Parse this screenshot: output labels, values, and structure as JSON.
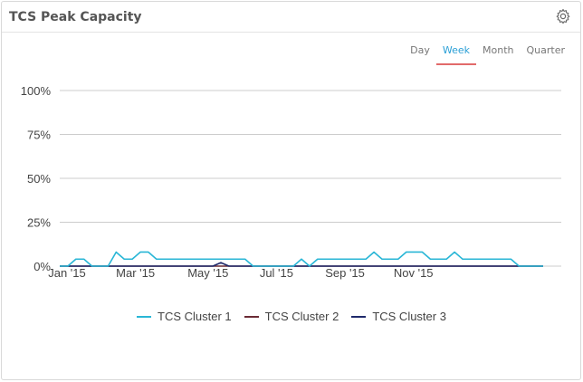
{
  "widget": {
    "title": "TCS Peak Capacity",
    "settings_icon": "gear-icon"
  },
  "range_tabs": [
    {
      "label": "Day",
      "active": false
    },
    {
      "label": "Week",
      "active": true
    },
    {
      "label": "Month",
      "active": false
    },
    {
      "label": "Quarter",
      "active": false
    }
  ],
  "colors": {
    "cluster1": "#29b6d6",
    "cluster2": "#6b2b35",
    "cluster3": "#1f2a6b",
    "grid": "#cccccc",
    "active_tab_underline": "#e26a6a"
  },
  "chart_data": {
    "type": "line",
    "title": "",
    "xlabel": "",
    "ylabel": "",
    "ylim": [
      0,
      100
    ],
    "y_ticks": [
      "0%",
      "25%",
      "50%",
      "75%",
      "100%"
    ],
    "x_ticks": [
      "Jan '15",
      "Mar '15",
      "May '15",
      "Jul '15",
      "Sep '15",
      "Nov '15"
    ],
    "grid": true,
    "legend_position": "bottom",
    "x_weeks": [
      0,
      1,
      2,
      3,
      4,
      5,
      6,
      7,
      8,
      9,
      10,
      11,
      12,
      13,
      14,
      15,
      16,
      17,
      18,
      19,
      20,
      21,
      22,
      23,
      24,
      25,
      26,
      27,
      28,
      29,
      30,
      31,
      32,
      33,
      34,
      35,
      36,
      37,
      38,
      39,
      40,
      41,
      42,
      43,
      44,
      45,
      46,
      47,
      48,
      49,
      50,
      51,
      52,
      53,
      54,
      55,
      56,
      57,
      58,
      59,
      60
    ],
    "series": [
      {
        "name": "TCS Cluster 1",
        "values": [
          0,
          0,
          4,
          4,
          0,
          0,
          0,
          8,
          4,
          4,
          8,
          8,
          4,
          4,
          4,
          4,
          4,
          4,
          4,
          4,
          4,
          4,
          4,
          4,
          0,
          0,
          0,
          0,
          0,
          0,
          4,
          0,
          4,
          4,
          4,
          4,
          4,
          4,
          4,
          8,
          4,
          4,
          4,
          8,
          8,
          8,
          4,
          4,
          4,
          8,
          4,
          4,
          4,
          4,
          4,
          4,
          4,
          0,
          0,
          0,
          0
        ]
      },
      {
        "name": "TCS Cluster 2",
        "values": [
          0,
          0,
          0,
          0,
          0,
          0,
          0,
          0,
          0,
          0,
          0,
          0,
          0,
          0,
          0,
          0,
          0,
          0,
          0,
          0,
          0,
          0,
          0,
          0,
          0,
          0,
          0,
          0,
          0,
          0,
          0,
          0,
          0,
          0,
          0,
          0,
          0,
          0,
          0,
          0,
          0,
          0,
          0,
          0,
          0,
          0,
          0,
          0,
          0,
          0,
          0,
          0,
          0,
          0,
          0,
          0,
          0,
          0,
          0,
          0,
          0
        ]
      },
      {
        "name": "TCS Cluster 3",
        "values": [
          0,
          0,
          0,
          0,
          0,
          0,
          0,
          0,
          0,
          0,
          0,
          0,
          0,
          0,
          0,
          0,
          0,
          0,
          0,
          0,
          2,
          0,
          0,
          0,
          0,
          0,
          0,
          0,
          0,
          0,
          0,
          0,
          0,
          0,
          0,
          0,
          0,
          0,
          0,
          0,
          0,
          0,
          0,
          0,
          0,
          0,
          0,
          0,
          0,
          0,
          0,
          0,
          0,
          0,
          0,
          0,
          0,
          0,
          0,
          0,
          0
        ]
      }
    ]
  },
  "legend": [
    {
      "label": "TCS Cluster 1"
    },
    {
      "label": "TCS Cluster 2"
    },
    {
      "label": "TCS Cluster 3"
    }
  ]
}
